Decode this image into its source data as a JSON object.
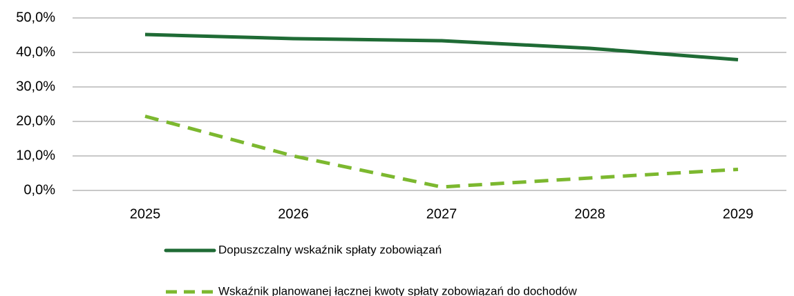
{
  "chart_data": {
    "type": "line",
    "categories": [
      "2025",
      "2026",
      "2027",
      "2028",
      "2029"
    ],
    "series": [
      {
        "name": "Dopuszczalny wskaźnik spłaty zobowiązań",
        "color": "#1f6b35",
        "dash": false,
        "values": [
          45.2,
          44.0,
          43.4,
          41.2,
          37.9
        ]
      },
      {
        "name": "Wskaźnik planowanej łącznej kwoty spłaty zobowiązań do dochodów",
        "color": "#7cb82f",
        "dash": true,
        "values": [
          21.5,
          10.0,
          1.0,
          3.6,
          6.1
        ]
      }
    ],
    "ylim": [
      0,
      50
    ],
    "yticks": [
      {
        "value": 0,
        "label": "0,0%"
      },
      {
        "value": 10,
        "label": "10,0%"
      },
      {
        "value": 20,
        "label": "20,0%"
      },
      {
        "value": 30,
        "label": "30,0%"
      },
      {
        "value": 40,
        "label": "40,0%"
      },
      {
        "value": 50,
        "label": "50,0%"
      }
    ],
    "grid": true,
    "legend": "bottom"
  }
}
